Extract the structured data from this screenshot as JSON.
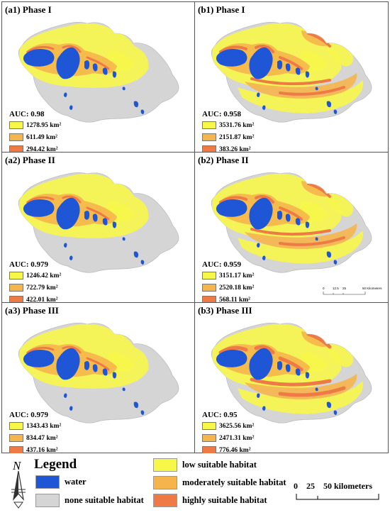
{
  "colors": {
    "water": "#1f56d6",
    "none": "#d5d5d5",
    "low": "#f7f74a",
    "moderate": "#f6b54c",
    "high": "#ee7b45"
  },
  "panels": [
    {
      "id": "a1",
      "title": "(a1) Phase I",
      "auc": "AUC: 0.98",
      "low": "1278.95 km²",
      "moderate": "611.49 km²",
      "high": "294.42 km²",
      "intensity": 1,
      "scale": false
    },
    {
      "id": "b1",
      "title": "(b1) Phase I",
      "auc": "AUC: 0.958",
      "low": "3531.76 km²",
      "moderate": "2151.87 km²",
      "high": "383.26 km²",
      "intensity": 2,
      "scale": false
    },
    {
      "id": "a2",
      "title": "(a2) Phase II",
      "auc": "AUC: 0.979",
      "low": "1246.42 km²",
      "moderate": "722.79 km²",
      "high": "422.01 km²",
      "intensity": 1,
      "scale": false
    },
    {
      "id": "b2",
      "title": "(b2) Phase II",
      "auc": "AUC: 0.959",
      "low": "3151.17 km²",
      "moderate": "2520.18 km²",
      "high": "568.11 km²",
      "intensity": 2,
      "scale": true
    },
    {
      "id": "a3",
      "title": "(a3) Phase III",
      "auc": "AUC: 0.979",
      "low": "1343.43 km²",
      "moderate": "834.47 km²",
      "high": "437.16 km²",
      "intensity": 1,
      "scale": false
    },
    {
      "id": "b3",
      "title": "(b3) Phase III",
      "auc": "AUC: 0.95",
      "low": "3625.56 km²",
      "moderate": "2471.31 km²",
      "high": "776.46 km²",
      "intensity": 3,
      "scale": false
    }
  ],
  "mini_scale": {
    "labels": [
      "0",
      "12.5",
      "25",
      "50 Kilometers"
    ]
  },
  "legend": {
    "north": "N",
    "title": "Legend",
    "items": {
      "water": "water",
      "none": "none suitable habitat",
      "low": "low suitable habitat",
      "moderate": "moderately suitable habitat",
      "high": "highly suitable habitat"
    },
    "scale_text": "0    25    50 kilometers"
  }
}
